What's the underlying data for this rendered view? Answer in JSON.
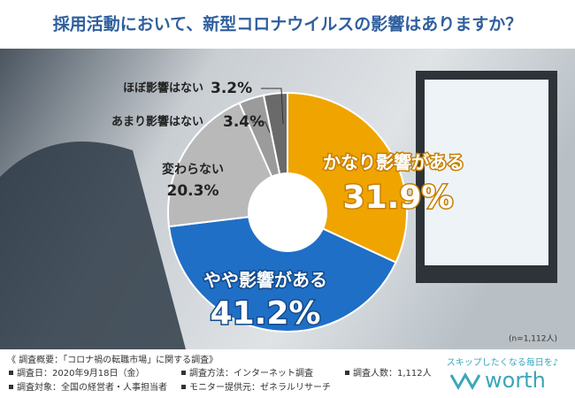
{
  "chart_data": {
    "type": "pie",
    "title": "採用活動において、新型コロナウイルスの影響はありますか？",
    "categories": [
      "かなり影響がある",
      "やや影響がある",
      "変わらない",
      "あまり影響はない",
      "ほぼ影響はない"
    ],
    "values": [
      31.9,
      41.2,
      20.3,
      3.4,
      3.2
    ],
    "value_labels": [
      "31.9%",
      "41.2%",
      "20.3%",
      "3.4%",
      "3.2%"
    ],
    "colors": [
      "#f0a400",
      "#1f6fc6",
      "#b9b9b9",
      "#9b9b9b",
      "#6a6a6a"
    ],
    "note": "(n=1,112人)"
  },
  "footer": {
    "heading": "《 調査概要：「コロナ禍の転職市場」に関する調査》",
    "items": [
      "調査日：2020年9月18日（金）",
      "調査方法：インターネット調査",
      "調査人数：1,112人",
      "調査対象：全国の経営者・人事担当者",
      "モニター提供元：ゼネラルリサーチ"
    ],
    "tagline": "スキップしたくなる毎日を♪",
    "logo": "worth"
  }
}
